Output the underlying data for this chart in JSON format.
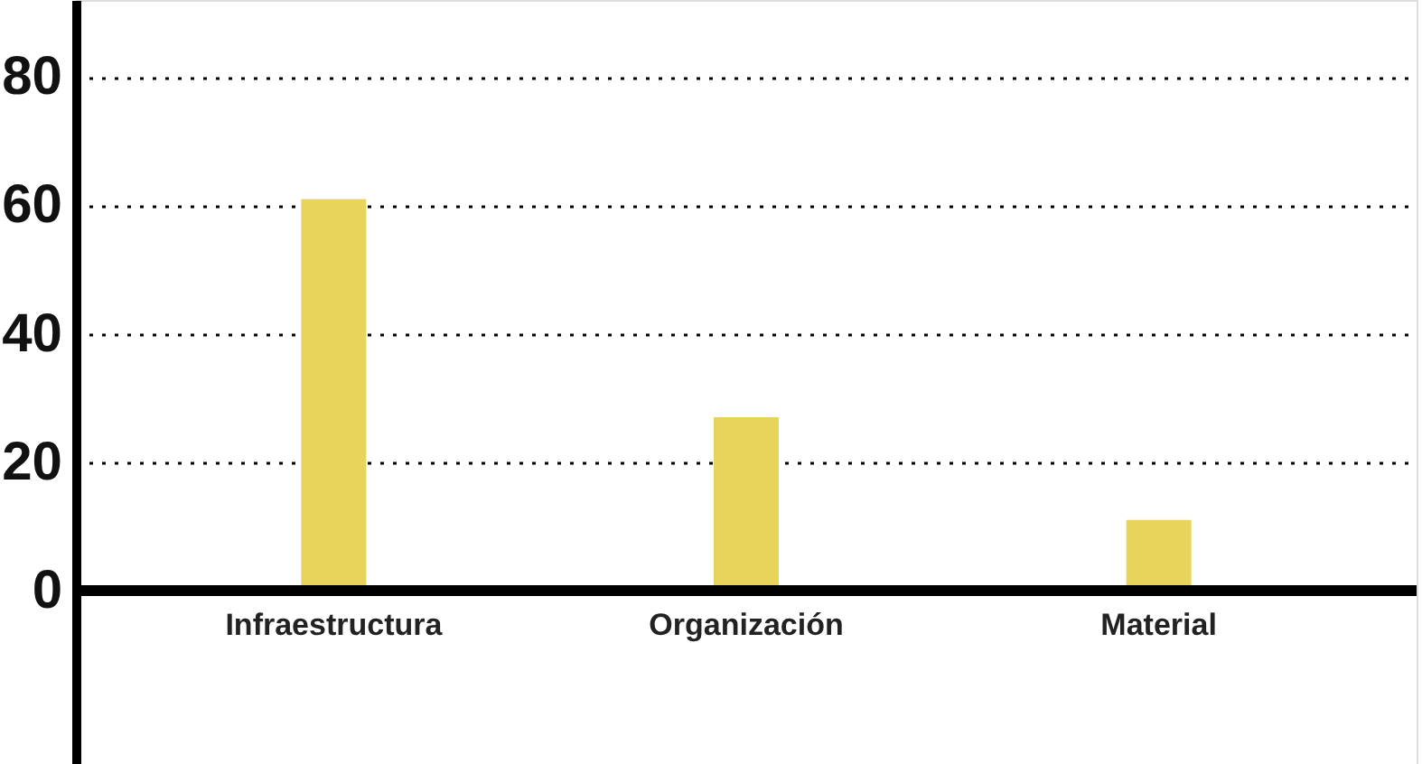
{
  "chart_data": {
    "type": "bar",
    "categories": [
      "Infraestructura",
      "Organización",
      "Material"
    ],
    "values": [
      61,
      27,
      11
    ],
    "color": "#e8d45a",
    "ylim": [
      -27,
      92
    ],
    "yticks": [
      0,
      20,
      40,
      60,
      80
    ],
    "grid": "y",
    "legend": false
  }
}
